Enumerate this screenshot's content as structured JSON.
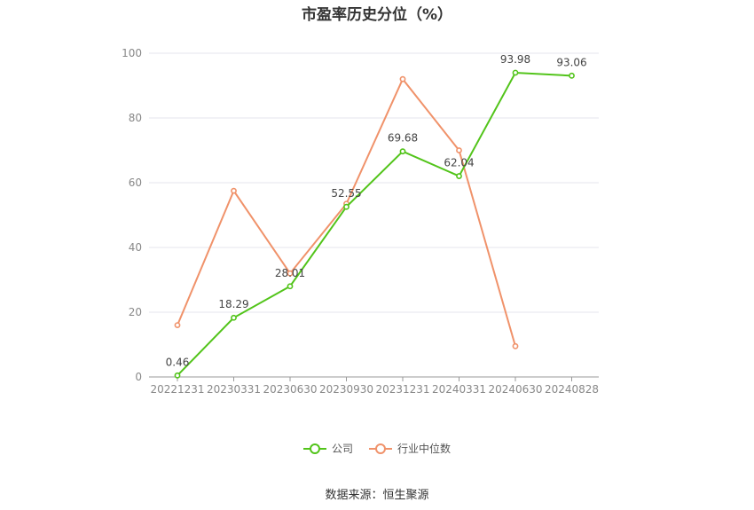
{
  "chart_data": {
    "type": "line",
    "title": "市盈率历史分位（%）",
    "categories": [
      "20221231",
      "20230331",
      "20230630",
      "20230930",
      "20231231",
      "20240331",
      "20240630",
      "20240828"
    ],
    "ylim": [
      0,
      100
    ],
    "yticks": [
      0,
      20,
      40,
      60,
      80,
      100
    ],
    "grid": true,
    "legend_position": "bottom",
    "series": [
      {
        "name": "公司",
        "color": "#52c41a",
        "values": [
          0.46,
          18.29,
          28.01,
          52.55,
          69.68,
          62.04,
          93.98,
          93.06
        ],
        "labels": [
          "0.46",
          "18.29",
          "28.01",
          "52.55",
          "69.68",
          "62.04",
          "93.98",
          "93.06"
        ]
      },
      {
        "name": "行业中位数",
        "color": "#f0926a",
        "values": [
          16,
          57.5,
          32,
          53.5,
          92,
          70,
          9.5,
          null
        ]
      }
    ]
  },
  "source": "数据来源：恒生聚源"
}
